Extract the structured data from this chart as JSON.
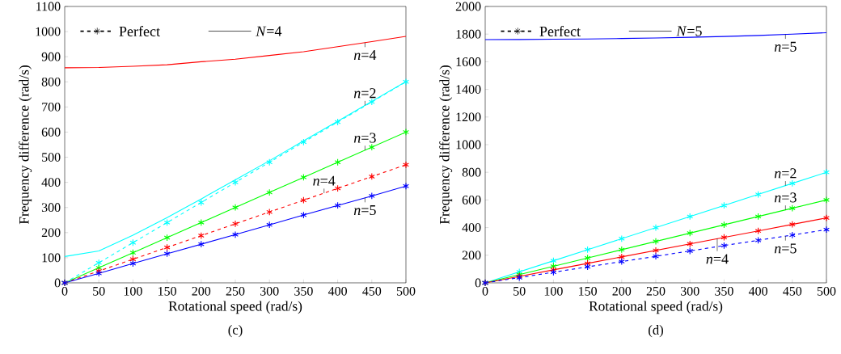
{
  "chart_data": [
    {
      "type": "line",
      "title": "(c)",
      "xlabel": "Rotational speed  (rad/s)",
      "ylabel": "Frequency difference  (rad/s)",
      "x": [
        0,
        50,
        100,
        150,
        200,
        250,
        300,
        350,
        400,
        450,
        500
      ],
      "xlim": [
        0,
        500
      ],
      "xticks": [
        0,
        50,
        100,
        150,
        200,
        250,
        300,
        350,
        400,
        450,
        500
      ],
      "ylim": [
        0,
        1100
      ],
      "yticks": [
        0,
        100,
        200,
        300,
        400,
        500,
        600,
        700,
        800,
        900,
        1000,
        1100
      ],
      "grid": false,
      "series": [
        {
          "color": "#ff0000",
          "line_style": "solid",
          "marker": "none",
          "values": [
            856,
            857,
            862,
            868,
            880,
            890,
            905,
            920,
            940,
            960,
            981
          ]
        },
        {
          "color": "#00ffff",
          "line_style": "solid",
          "marker": "none",
          "values": [
            105,
            127,
            190,
            260,
            334,
            410,
            486,
            565,
            643,
            722,
            801
          ]
        },
        {
          "color": "#00ffff",
          "line_style": "dashed",
          "marker": "cross",
          "values": [
            0,
            80,
            160,
            240,
            320,
            400,
            480,
            560,
            640,
            720,
            800
          ]
        },
        {
          "color": "#00ff00",
          "line_style": "solid",
          "marker": "cross",
          "values": [
            0,
            60,
            120,
            180,
            240,
            300,
            360,
            420,
            480,
            540,
            600
          ]
        },
        {
          "color": "#ff0000",
          "line_style": "dashed",
          "marker": "cross",
          "values": [
            0,
            47,
            94,
            141,
            188,
            235,
            282,
            329,
            376,
            423,
            470
          ]
        },
        {
          "color": "#0000ff",
          "line_style": "solid",
          "marker": "cross",
          "values": [
            0,
            38,
            77,
            116,
            154,
            192,
            231,
            270,
            308,
            346,
            385
          ]
        }
      ],
      "annotations": [
        "Perfect",
        "*N*=4",
        {
          "text": "*n*=4",
          "x": 440,
          "y": 956
        },
        {
          "text": "*n*=2",
          "x": 440,
          "y": 706
        },
        {
          "text": "*n*=3",
          "x": 440,
          "y": 528
        },
        {
          "text": "*n*=4",
          "x": 380,
          "y": 357
        },
        {
          "text": "*n*=5",
          "x": 440,
          "y": 339
        }
      ]
    },
    {
      "type": "line",
      "title": "(d)",
      "xlabel": "Rotational speed  (rad/s)",
      "ylabel": "Frequency difference  (rad/s)",
      "x": [
        0,
        50,
        100,
        150,
        200,
        250,
        300,
        350,
        400,
        450,
        500
      ],
      "xlim": [
        0,
        500
      ],
      "xticks": [
        0,
        50,
        100,
        150,
        200,
        250,
        300,
        350,
        400,
        450,
        500
      ],
      "ylim": [
        0,
        2000
      ],
      "yticks": [
        0,
        200,
        400,
        600,
        800,
        1000,
        1200,
        1400,
        1600,
        1800,
        2000
      ],
      "grid": false,
      "series": [
        {
          "color": "#0000ff",
          "line_style": "solid",
          "marker": "none",
          "values": [
            1760,
            1761,
            1763,
            1765,
            1768,
            1772,
            1777,
            1783,
            1790,
            1800,
            1810
          ]
        },
        {
          "color": "#00ffff",
          "line_style": "solid",
          "marker": "cross",
          "values": [
            0,
            80,
            160,
            240,
            320,
            400,
            480,
            560,
            640,
            720,
            800
          ]
        },
        {
          "color": "#00ff00",
          "line_style": "solid",
          "marker": "cross",
          "values": [
            0,
            60,
            120,
            180,
            240,
            300,
            360,
            420,
            480,
            540,
            600
          ]
        },
        {
          "color": "#ff0000",
          "line_style": "solid",
          "marker": "cross",
          "values": [
            0,
            47,
            94,
            141,
            188,
            235,
            282,
            329,
            376,
            423,
            470
          ]
        },
        {
          "color": "#0000ff",
          "line_style": "dashed",
          "marker": "cross",
          "values": [
            0,
            38,
            77,
            116,
            154,
            192,
            231,
            270,
            308,
            346,
            385
          ]
        }
      ],
      "annotations": [
        "Perfect",
        "*N*=5",
        {
          "text": "*n*=5",
          "x": 440,
          "y": 1798
        },
        {
          "text": "*n*=2",
          "x": 440,
          "y": 704
        },
        {
          "text": "*n*=3",
          "x": 440,
          "y": 528
        },
        {
          "text": "*n*=4",
          "x": 340,
          "y": 320
        },
        {
          "text": "*n*=5",
          "x": 440,
          "y": 339
        }
      ]
    }
  ]
}
